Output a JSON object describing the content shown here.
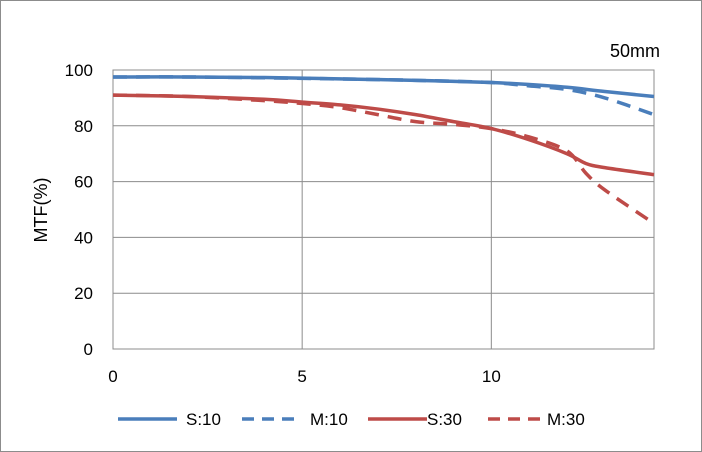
{
  "chart_data": {
    "type": "line",
    "title": "",
    "annotation": "50mm",
    "xlabel": "",
    "ylabel": "MTF(%)",
    "xlim": [
      0,
      14.3
    ],
    "ylim": [
      0,
      100
    ],
    "xticks": [
      0,
      5,
      10
    ],
    "yticks": [
      0,
      20,
      40,
      60,
      80,
      100
    ],
    "grid": true,
    "legend_position": "bottom",
    "series": [
      {
        "name": "S:10",
        "color": "#4a7ebb",
        "dash": "solid",
        "x": [
          0,
          2,
          4,
          6,
          8,
          10,
          11,
          12,
          13,
          14.3
        ],
        "y": [
          97.5,
          97.5,
          97.3,
          96.8,
          96.3,
          95.5,
          94.8,
          93.8,
          92.3,
          90.5
        ]
      },
      {
        "name": "M:10",
        "color": "#4a7ebb",
        "dash": "dashed",
        "x": [
          0,
          2,
          4,
          6,
          8,
          10,
          11,
          12,
          13,
          14.3
        ],
        "y": [
          97.5,
          97.5,
          97.2,
          96.8,
          96.3,
          95.5,
          94.3,
          93,
          90,
          84
        ]
      },
      {
        "name": "S:30",
        "color": "#be4b48",
        "dash": "solid",
        "x": [
          0,
          2,
          4,
          5,
          6,
          7,
          8,
          9,
          10,
          11,
          12,
          12.5,
          13,
          14.3
        ],
        "y": [
          91,
          90.5,
          89.5,
          88.5,
          87.5,
          86,
          84,
          81.5,
          79,
          75,
          70,
          66.5,
          65,
          62.5
        ]
      },
      {
        "name": "M:30",
        "color": "#be4b48",
        "dash": "dashed",
        "x": [
          0,
          2,
          4,
          5,
          6,
          7,
          8,
          9,
          10,
          11,
          12,
          12.5,
          13,
          14.3
        ],
        "y": [
          91,
          90.5,
          89,
          88,
          86.5,
          84,
          81.5,
          80.5,
          79,
          76,
          71,
          63,
          57,
          45
        ]
      }
    ]
  }
}
